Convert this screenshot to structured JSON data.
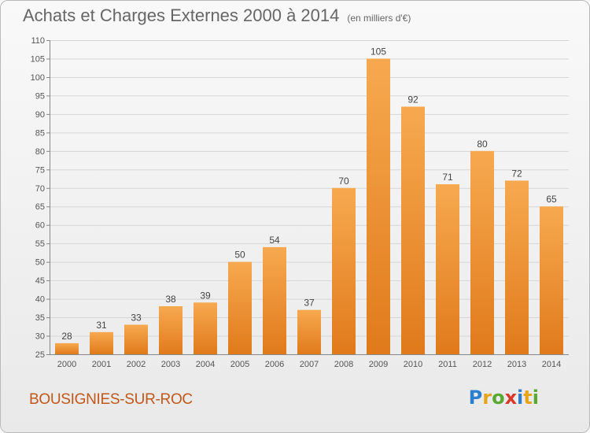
{
  "title": "Achats et Charges Externes 2000 à 2014",
  "unit": "(en milliers d'€)",
  "town": "BOUSIGNIES-SUR-ROC",
  "brand": "Proxiti",
  "colors": {
    "bar_top": "#f7a94f",
    "bar_bottom": "#e07a1b",
    "town": "#c2571a",
    "text": "#666666"
  },
  "chart_data": {
    "type": "bar",
    "title": "Achats et Charges Externes 2000 à 2014",
    "categories": [
      "2000",
      "2001",
      "2002",
      "2003",
      "2004",
      "2005",
      "2006",
      "2007",
      "2008",
      "2009",
      "2010",
      "2011",
      "2012",
      "2013",
      "2014"
    ],
    "values": [
      28,
      31,
      33,
      38,
      39,
      50,
      54,
      37,
      70,
      105,
      92,
      71,
      80,
      72,
      65
    ],
    "ylim": [
      25,
      110
    ],
    "yticks": [
      25,
      30,
      35,
      40,
      45,
      50,
      55,
      60,
      65,
      70,
      75,
      80,
      85,
      90,
      95,
      100,
      105,
      110
    ],
    "grid": true,
    "xlabel": "",
    "ylabel": ""
  }
}
